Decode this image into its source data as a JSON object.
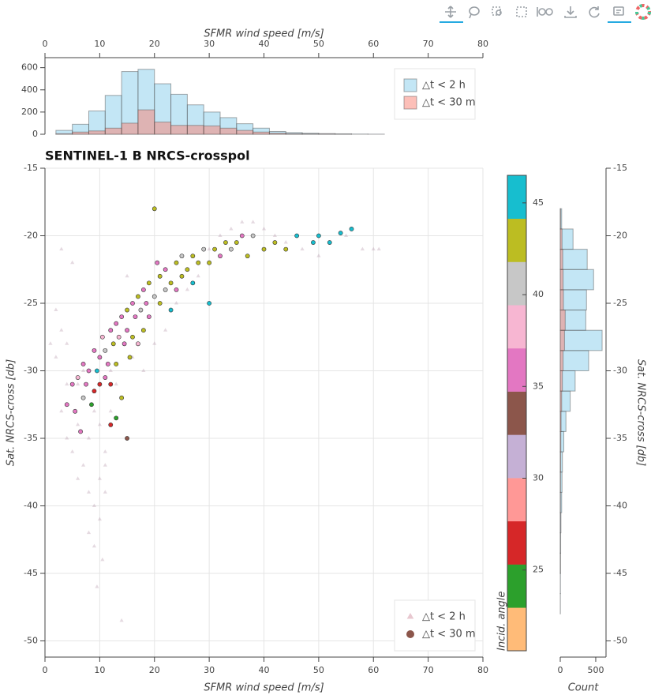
{
  "chart_data": [
    {
      "type": "histogram",
      "xlabel": "SFMR wind speed [m/s]",
      "bins": [
        2,
        5,
        8,
        11,
        14,
        17,
        20,
        23,
        26,
        29,
        32,
        35,
        38,
        41,
        44,
        47,
        50,
        53,
        56,
        59,
        62
      ],
      "series": [
        {
          "name": "△t < 2 h",
          "color": "#87ceeb",
          "values": [
            35,
            90,
            210,
            350,
            565,
            585,
            455,
            360,
            265,
            200,
            150,
            95,
            55,
            25,
            15,
            10,
            6,
            4,
            2,
            1
          ]
        },
        {
          "name": "△t < 30 m",
          "color": "#fa8072",
          "values": [
            5,
            20,
            30,
            55,
            100,
            220,
            110,
            80,
            80,
            75,
            55,
            35,
            20,
            10,
            5,
            3,
            2,
            1,
            0,
            0
          ]
        }
      ],
      "alpha": 0.5,
      "xlim": [
        0,
        80
      ],
      "xticks": [
        0,
        10,
        20,
        30,
        40,
        50,
        60,
        70,
        80
      ],
      "ylim": [
        0,
        690
      ],
      "yticks": [
        0,
        200,
        400,
        600
      ],
      "legend": "top_right"
    },
    {
      "type": "scatter",
      "title": "SENTINEL-1 B NRCS-crosspol",
      "xlabel": "SFMR wind speed [m/s]",
      "ylabel": "Sat. NRCS-cross [db]",
      "xlim": [
        0,
        80
      ],
      "xticks": [
        0,
        10,
        20,
        30,
        40,
        50,
        60,
        70,
        80
      ],
      "ylim": [
        -51.2,
        -15
      ],
      "yticks": [
        -50,
        -45,
        -40,
        -35,
        -30,
        -25,
        -20,
        -15
      ],
      "grid": true,
      "legend": "bottom_right",
      "series": [
        {
          "name": "△t < 2 h",
          "marker": "triangle",
          "color": "#a8839a",
          "legend_color": "#e8c8d0",
          "alpha": 0.3,
          "x": [
            2,
            3,
            3,
            4,
            4,
            5,
            6,
            6,
            7,
            8,
            8,
            9,
            9,
            9.5,
            10,
            10,
            10.5,
            11,
            11,
            8,
            7,
            12,
            14,
            16,
            18,
            20,
            22,
            24,
            26,
            28,
            30,
            32,
            34,
            36,
            38,
            40,
            42,
            44,
            47,
            50,
            55,
            58,
            60,
            61,
            1,
            2,
            3,
            5,
            15,
            12,
            6,
            9,
            10,
            11,
            13,
            4
          ],
          "y": [
            -29,
            -27,
            -33,
            -28,
            -35,
            -36,
            -34,
            -38,
            -37,
            -35,
            -39,
            -40,
            -43,
            -46,
            -38,
            -41,
            -44,
            -37,
            -39,
            -42,
            -30,
            -33,
            -48.5,
            -29,
            -30,
            -28,
            -27,
            -25,
            -24,
            -23,
            -21,
            -20,
            -19.5,
            -19,
            -19,
            -19.5,
            -20,
            -20.5,
            -21,
            -21.5,
            -20,
            -21,
            -21,
            -21,
            -28,
            -25.5,
            -21,
            -22,
            -23,
            -30,
            -31,
            -33,
            -34,
            -36,
            -31,
            -31
          ]
        },
        {
          "name": "△t < 30 m",
          "marker": "circle",
          "legend_color": "#8c564b",
          "x": [
            4,
            5,
            5.5,
            6,
            6.5,
            7,
            7,
            7.5,
            8,
            8.5,
            9,
            9,
            9.5,
            10,
            10,
            10.5,
            11,
            11,
            11.5,
            12,
            12,
            12.5,
            13,
            13,
            13.5,
            14,
            14,
            14.5,
            15,
            15,
            15.5,
            16,
            16,
            16.5,
            17,
            17,
            17.5,
            18,
            18,
            18.5,
            19,
            19,
            20,
            20,
            20.5,
            21,
            21,
            22,
            22,
            23,
            23,
            24,
            24,
            25,
            25,
            26,
            27,
            27,
            28,
            29,
            30,
            30,
            31,
            32,
            33,
            34,
            35,
            36,
            37,
            38,
            40,
            42,
            44,
            46,
            49,
            50,
            52,
            54,
            56,
            12,
            15,
            13
          ],
          "y": [
            -32.5,
            -31,
            -33,
            -30.5,
            -34.5,
            -29.5,
            -32,
            -31,
            -30,
            -32.5,
            -28.5,
            -31.5,
            -30,
            -29,
            -31,
            -27.5,
            -30.5,
            -28.5,
            -29.5,
            -27,
            -31,
            -28,
            -26.5,
            -29.5,
            -27.5,
            -26,
            -32,
            -28,
            -25.5,
            -27,
            -29,
            -25,
            -27.5,
            -26,
            -24.5,
            -28,
            -25.5,
            -24,
            -27,
            -25,
            -23.5,
            -26,
            -18,
            -24.5,
            -22,
            -25,
            -23,
            -24,
            -22.5,
            -23.5,
            -25.5,
            -22,
            -24,
            -23,
            -21.5,
            -22.5,
            -21.5,
            -23.5,
            -22,
            -21,
            -22,
            -25,
            -21,
            -21.5,
            -20.5,
            -21,
            -20.5,
            -20,
            -21.5,
            -20,
            -21,
            -20.5,
            -21,
            -20,
            -20.5,
            -20,
            -20.5,
            -19.8,
            -19.5,
            -34,
            -35,
            -33.5
          ],
          "angle": [
            37,
            37,
            36,
            38,
            37,
            37,
            40,
            36,
            37,
            24,
            37,
            27,
            45,
            37,
            26,
            38,
            37,
            40,
            36,
            37,
            26,
            42,
            37,
            43,
            38,
            37,
            43,
            35,
            42,
            37,
            43,
            36,
            42,
            37,
            43,
            38,
            40,
            37,
            43,
            35,
            42,
            37,
            43,
            40,
            37,
            43,
            42,
            41,
            37,
            43,
            46,
            42,
            35,
            43,
            40,
            43,
            42,
            46,
            43,
            40,
            43,
            46,
            42,
            35,
            43,
            40,
            42,
            37,
            43,
            40,
            43,
            43,
            43,
            46,
            46,
            46,
            46,
            46,
            46,
            27,
            34,
            24
          ]
        }
      ],
      "colorbar": {
        "label": "Incid. angle",
        "lim": [
          20.6,
          46.5
        ],
        "ticks": [
          25,
          30,
          35,
          40,
          45
        ],
        "palette": [
          "#ffbb78",
          "#2ca02c",
          "#d62728",
          "#ff9896",
          "#c5b0d5",
          "#8c564b",
          "#e377c2",
          "#f7b6d2",
          "#c7c7c7",
          "#bcbd22",
          "#17becf"
        ]
      }
    },
    {
      "type": "histogram",
      "orientation": "horizontal",
      "xlabel": "Count",
      "ylabel": "Sat. NRCS-cross [db]",
      "bins": [
        -48,
        -46.5,
        -45,
        -43.5,
        -42,
        -40.5,
        -39,
        -37.5,
        -36,
        -34.5,
        -33,
        -31.5,
        -30,
        -28.5,
        -27,
        -25.5,
        -24,
        -22.5,
        -21,
        -19.5,
        -18
      ],
      "series": [
        {
          "name": "△t < 2 h",
          "color": "#87ceeb",
          "values": [
            2,
            3,
            4,
            6,
            10,
            20,
            25,
            30,
            50,
            80,
            140,
            210,
            400,
            590,
            360,
            370,
            470,
            380,
            180,
            20
          ]
        },
        {
          "name": "△t < 30 m",
          "color": "#fa8072",
          "values": [
            0,
            0,
            1,
            1,
            2,
            3,
            4,
            6,
            8,
            12,
            20,
            30,
            40,
            60,
            70,
            45,
            40,
            35,
            25,
            5
          ]
        }
      ],
      "alpha": 0.5,
      "xlim": [
        0,
        645
      ],
      "xticks": [
        0,
        500
      ],
      "ylim": [
        -51.2,
        -15
      ],
      "yticks": [
        -50,
        -45,
        -40,
        -35,
        -30,
        -25,
        -20,
        -15
      ]
    }
  ]
}
